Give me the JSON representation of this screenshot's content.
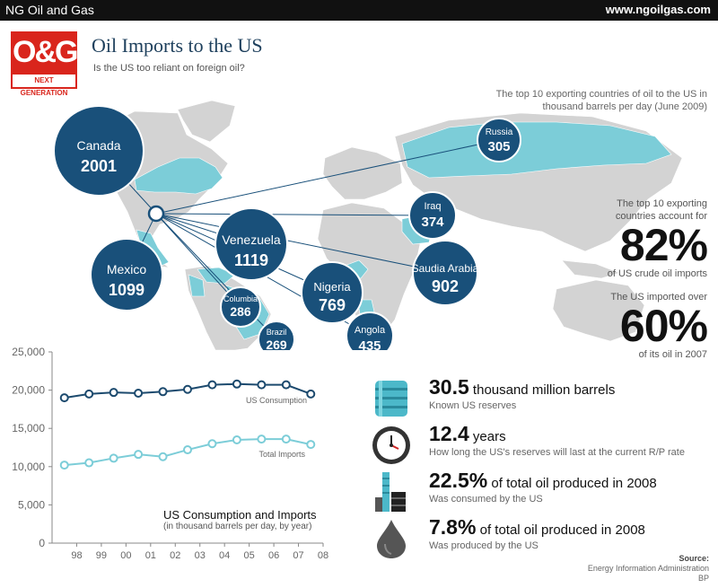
{
  "header": {
    "site_name": "NG Oil and Gas",
    "site_url": "www.ngoilgas.com"
  },
  "logo": {
    "mark": "O&G",
    "sub": "NEXT GENERATION"
  },
  "title": "Oil Imports to the US",
  "subtitle": "Is the US too reliant on foreign oil?",
  "map_note": "The top 10 exporting countries of oil to the US in thousand barrels per day (June 2009)",
  "colors": {
    "bubble": "#19507a",
    "highlight": "#7ccdd8",
    "land": "#d3d3d3",
    "consumption": "#1c4a6e",
    "imports": "#7ccdd8"
  },
  "exporters": [
    {
      "name": "Canada",
      "value": "2001"
    },
    {
      "name": "Mexico",
      "value": "1099"
    },
    {
      "name": "Venezuela",
      "value": "1119"
    },
    {
      "name": "Columbia",
      "value": "286"
    },
    {
      "name": "Brazil",
      "value": "269"
    },
    {
      "name": "Nigeria",
      "value": "769"
    },
    {
      "name": "Angola",
      "value": "435"
    },
    {
      "name": "Saudia Arabia",
      "value": "902"
    },
    {
      "name": "Iraq",
      "value": "374"
    },
    {
      "name": "Russia",
      "value": "305"
    }
  ],
  "stats": [
    {
      "label_top": "The top 10 exporting countries account for",
      "value": "82%",
      "label_bottom": "of US crude oil imports"
    },
    {
      "label_top": "The US imported over",
      "value": "60%",
      "label_bottom": "of its oil in 2007"
    }
  ],
  "facts": [
    {
      "icon": "barrel-icon",
      "number": "30.5",
      "text": " thousand million barrels",
      "detail": "Known US reserves"
    },
    {
      "icon": "clock-icon",
      "number": "12.4",
      "text": " years",
      "detail": "How long the US's reserves will last at the current R/P rate"
    },
    {
      "icon": "refinery-icon",
      "number": "22.5%",
      "text": " of total oil produced in 2008",
      "detail": "Was consumed by the US"
    },
    {
      "icon": "oil-drop-icon",
      "number": "7.8%",
      "text": " of total oil produced in 2008",
      "detail": "Was produced by the US"
    }
  ],
  "source": {
    "heading": "Source:",
    "lines": [
      "Energy Information Administration",
      "BP"
    ]
  },
  "chart_title": "US Consumption and Imports",
  "chart_subtitle": "(in thousand barrels per day, by year)",
  "chart_data": {
    "type": "line",
    "categories": [
      "98",
      "99",
      "00",
      "01",
      "02",
      "03",
      "04",
      "05",
      "06",
      "07",
      "08"
    ],
    "yticks": [
      "0",
      "5,000",
      "10,000",
      "15,000",
      "20,000",
      "25,000"
    ],
    "ylim": [
      0,
      25000
    ],
    "x": [
      1997.5,
      1998.5,
      1999.5,
      2000.5,
      2001.5,
      2002.5,
      2003.5,
      2004.5,
      2005.5,
      2006.5,
      2007.5
    ],
    "series": [
      {
        "name": "US Consumption",
        "values": [
          19000,
          19500,
          19700,
          19600,
          19800,
          20100,
          20700,
          20800,
          20700,
          20700,
          19500
        ]
      },
      {
        "name": "Total Imports",
        "values": [
          10200,
          10500,
          11100,
          11600,
          11300,
          12200,
          13000,
          13500,
          13600,
          13600,
          12900
        ]
      }
    ],
    "grid": false
  }
}
